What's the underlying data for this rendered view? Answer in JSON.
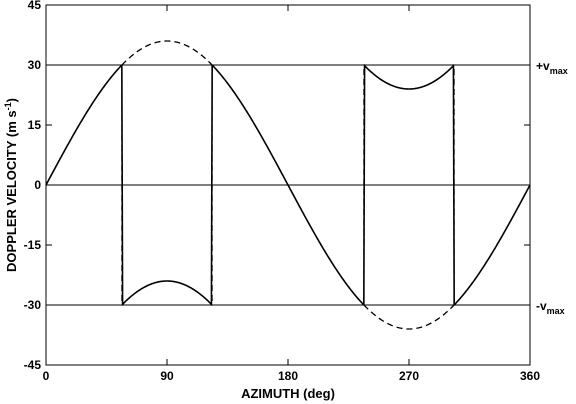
{
  "chart_data": {
    "type": "line",
    "title": "",
    "xlabel": "AZIMUTH (deg)",
    "ylabel": "DOPPLER VELOCITY (m s",
    "ylabel_sup": "-1",
    "ylabel_close": ")",
    "xlim": [
      0,
      360
    ],
    "ylim": [
      -45,
      45
    ],
    "x_ticks": [
      0,
      90,
      180,
      270,
      360
    ],
    "y_ticks": [
      -45,
      -30,
      -15,
      0,
      15,
      30,
      45
    ],
    "true_velocity_amplitude": 36,
    "nyquist_velocity": 30,
    "reference_lines": [
      {
        "y": 30,
        "label": "+v",
        "label_sub": "max"
      },
      {
        "y": 0,
        "label": "",
        "label_sub": ""
      },
      {
        "y": -30,
        "label": "-v",
        "label_sub": "max"
      }
    ],
    "series": [
      {
        "style": "solid",
        "description_curve": "measured (folded) velocity, V = 36 sin(az) folded into [-30, 30]"
      },
      {
        "style": "dashed",
        "description_curve": "true velocity where |V| exceeds v max"
      }
    ],
    "fold_azimuths": [
      56.4,
      123.6,
      236.4,
      303.6
    ],
    "folded_extremes": [
      {
        "x": 90,
        "y": -24
      },
      {
        "x": 270,
        "y": 24
      }
    ]
  }
}
